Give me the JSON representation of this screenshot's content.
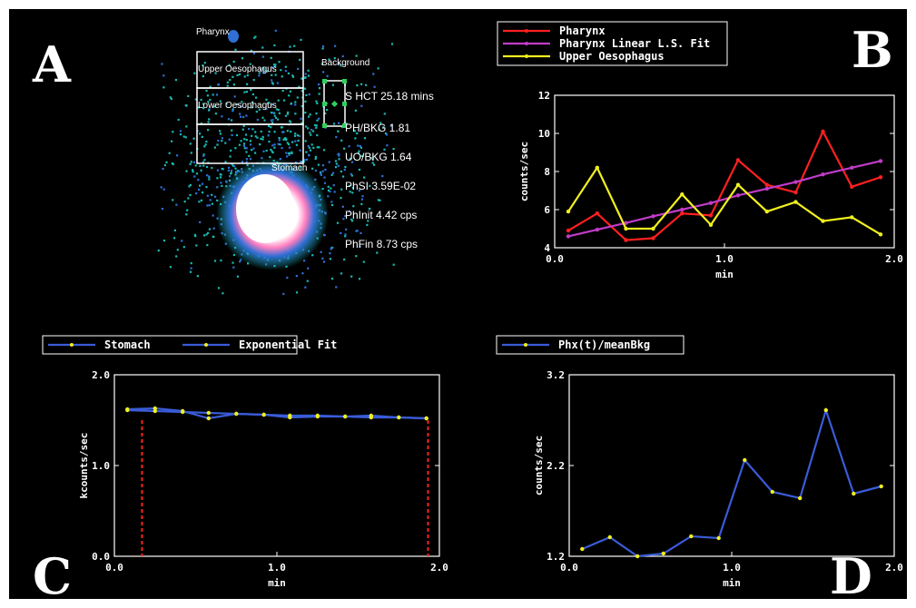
{
  "panels": {
    "A": "A",
    "B": "B",
    "C": "C",
    "D": "D"
  },
  "scan": {
    "regions": {
      "pharynx": "Pharynx",
      "upper": "Upper Oesophagus",
      "lower": "Lower Oesophagus",
      "stomach": "Stomach",
      "background": "Background"
    },
    "stats": [
      "S HCT  25.18 mins",
      "PH/BKG   1.81",
      "UO/BKG   1.64",
      "PhSI  3.59E-02",
      "PhInit 4.42 cps",
      "PhFin 8.73 cps"
    ],
    "colors": {
      "hot": "#ffffff",
      "warm": "#ff2f88",
      "mid": "#2f6fd6",
      "cool": "#19b8b0"
    }
  },
  "chart_data": [
    {
      "id": "B",
      "type": "line",
      "xlabel": "min",
      "ylabel": "counts/sec",
      "xlim": [
        0,
        2
      ],
      "ylim": [
        4,
        12
      ],
      "xticks": [
        "0.0",
        "1.0",
        "2.0"
      ],
      "yticks": [
        "4",
        "6",
        "8",
        "10",
        "12"
      ],
      "legend_position": "top",
      "series": [
        {
          "name": "Pharynx",
          "color": "#ff2020",
          "x": [
            0.08,
            0.25,
            0.42,
            0.58,
            0.75,
            0.92,
            1.08,
            1.25,
            1.42,
            1.58,
            1.75,
            1.92
          ],
          "y": [
            4.9,
            5.8,
            4.4,
            4.5,
            5.8,
            5.7,
            8.6,
            7.3,
            6.9,
            10.1,
            7.2,
            7.7
          ]
        },
        {
          "name": "Pharynx Linear L.S. Fit",
          "color": "#c03cc8",
          "x": [
            0.08,
            0.25,
            0.42,
            0.58,
            0.75,
            0.92,
            1.08,
            1.25,
            1.42,
            1.58,
            1.75,
            1.92
          ],
          "y": [
            4.6,
            4.95,
            5.3,
            5.65,
            6.0,
            6.35,
            6.75,
            7.1,
            7.45,
            7.85,
            8.2,
            8.55
          ]
        },
        {
          "name": "Upper Oesophagus",
          "color": "#f0f020",
          "x": [
            0.08,
            0.25,
            0.42,
            0.58,
            0.75,
            0.92,
            1.08,
            1.25,
            1.42,
            1.58,
            1.75,
            1.92
          ],
          "y": [
            5.9,
            8.2,
            5.0,
            5.0,
            6.8,
            5.2,
            7.3,
            5.9,
            6.4,
            5.4,
            5.6,
            4.7
          ]
        }
      ]
    },
    {
      "id": "C",
      "type": "line",
      "xlabel": "min",
      "ylabel": "kcounts/sec",
      "xlim": [
        0,
        2
      ],
      "ylim": [
        0,
        2
      ],
      "xticks": [
        "0.0",
        "1.0",
        "2.0"
      ],
      "yticks": [
        "0.0",
        "1.0",
        "2.0"
      ],
      "legend_position": "top",
      "vlines": [
        0.17,
        1.93
      ],
      "vline_color": "#ff2020",
      "series": [
        {
          "name": "Stomach",
          "color": "#3a5cd8",
          "x": [
            0.08,
            0.25,
            0.42,
            0.58,
            0.75,
            0.92,
            1.08,
            1.25,
            1.42,
            1.58,
            1.75,
            1.92
          ],
          "y": [
            1.62,
            1.63,
            1.6,
            1.52,
            1.57,
            1.56,
            1.53,
            1.54,
            1.54,
            1.55,
            1.53,
            1.52
          ]
        },
        {
          "name": "Exponential Fit",
          "color": "#3a5cd8",
          "x": [
            0.08,
            0.25,
            0.42,
            0.58,
            0.75,
            0.92,
            1.08,
            1.25,
            1.42,
            1.58,
            1.75,
            1.92
          ],
          "y": [
            1.61,
            1.6,
            1.59,
            1.58,
            1.57,
            1.56,
            1.55,
            1.55,
            1.54,
            1.53,
            1.53,
            1.52
          ]
        }
      ]
    },
    {
      "id": "D",
      "type": "line",
      "xlabel": "min",
      "ylabel": "counts/sec",
      "xlim": [
        0,
        2
      ],
      "ylim": [
        1.2,
        3.2
      ],
      "xticks": [
        "0.0",
        "1.0",
        "2.0"
      ],
      "yticks": [
        "1.2",
        "2.2",
        "3.2"
      ],
      "legend_position": "top",
      "series": [
        {
          "name": "Phx(t)/meanBkg",
          "color": "#3a5cd8",
          "x": [
            0.08,
            0.25,
            0.42,
            0.58,
            0.75,
            0.92,
            1.08,
            1.25,
            1.42,
            1.58,
            1.75,
            1.92
          ],
          "y": [
            1.28,
            1.41,
            1.2,
            1.23,
            1.42,
            1.4,
            2.26,
            1.91,
            1.84,
            2.81,
            1.89,
            1.97
          ]
        }
      ]
    }
  ]
}
